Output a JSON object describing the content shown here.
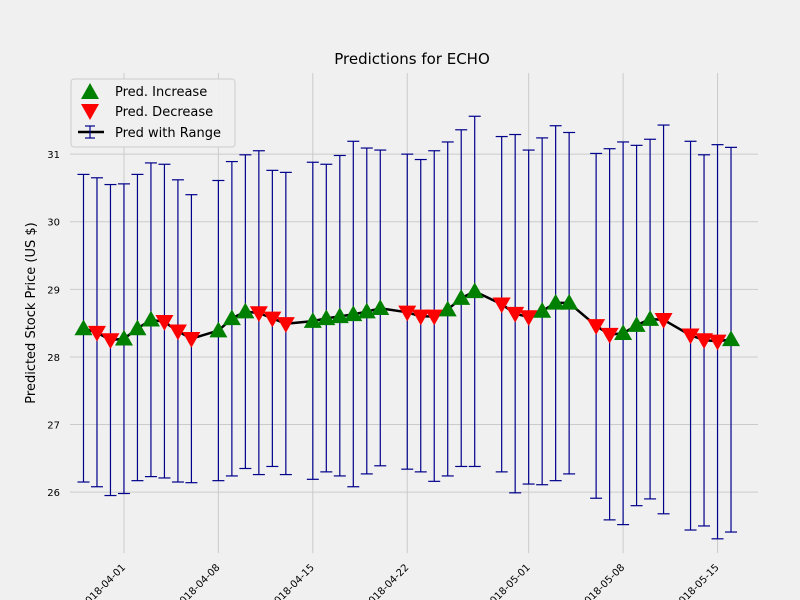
{
  "chart_data": {
    "type": "line",
    "title": "Predictions for ECHO",
    "xlabel": "",
    "ylabel": "Predicted Stock Price (US $)",
    "x_start": "2018-03-28",
    "x_end": "2018-05-18",
    "ylim": [
      25.1,
      32.2
    ],
    "y_ticks": [
      26,
      27,
      28,
      29,
      30,
      31
    ],
    "x_ticks": [
      "2018-04-01",
      "2018-04-08",
      "2018-04-15",
      "2018-04-22",
      "2018-05-01",
      "2018-05-08",
      "2018-05-15"
    ],
    "x_tick_labels": [
      "2018-04-01",
      "2018-04-08",
      "2018-04-15",
      "2018-04-22",
      "2018-05-01",
      "2018-05-08",
      "2018-05-15"
    ],
    "grid": true,
    "legend_position": "top-left",
    "legend": {
      "increase": "Pred. Increase",
      "decrease": "Pred. Decrease",
      "range": "Pred with Range"
    },
    "colors": {
      "increase": "#008000",
      "decrease": "#ff0000",
      "line": "#000000",
      "errorbar": "#00008b",
      "grid": "#cbcbcb",
      "background": "#f0f0f0"
    },
    "points": [
      {
        "date": "2018-03-29",
        "y": 28.42,
        "low": 26.15,
        "high": 30.7,
        "dir": "up"
      },
      {
        "date": "2018-03-30",
        "y": 28.36,
        "low": 26.08,
        "high": 30.65,
        "dir": "down"
      },
      {
        "date": "2018-03-31",
        "y": 28.25,
        "low": 25.95,
        "high": 30.55,
        "dir": "down"
      },
      {
        "date": "2018-04-01",
        "y": 28.27,
        "low": 25.98,
        "high": 30.56,
        "dir": "up"
      },
      {
        "date": "2018-04-02",
        "y": 28.42,
        "low": 26.17,
        "high": 30.7,
        "dir": "up"
      },
      {
        "date": "2018-04-03",
        "y": 28.55,
        "low": 26.23,
        "high": 30.87,
        "dir": "up"
      },
      {
        "date": "2018-04-04",
        "y": 28.52,
        "low": 26.21,
        "high": 30.85,
        "dir": "down"
      },
      {
        "date": "2018-04-05",
        "y": 28.38,
        "low": 26.15,
        "high": 30.62,
        "dir": "down"
      },
      {
        "date": "2018-04-06",
        "y": 28.27,
        "low": 26.14,
        "high": 30.4,
        "dir": "down"
      },
      {
        "date": "2018-04-08",
        "y": 28.39,
        "low": 26.17,
        "high": 30.61,
        "dir": "up"
      },
      {
        "date": "2018-04-09",
        "y": 28.57,
        "low": 26.24,
        "high": 30.89,
        "dir": "up"
      },
      {
        "date": "2018-04-10",
        "y": 28.67,
        "low": 26.35,
        "high": 30.99,
        "dir": "up"
      },
      {
        "date": "2018-04-11",
        "y": 28.65,
        "low": 26.26,
        "high": 31.05,
        "dir": "down"
      },
      {
        "date": "2018-04-12",
        "y": 28.57,
        "low": 26.38,
        "high": 30.76,
        "dir": "down"
      },
      {
        "date": "2018-04-13",
        "y": 28.49,
        "low": 26.26,
        "high": 30.73,
        "dir": "down"
      },
      {
        "date": "2018-04-15",
        "y": 28.53,
        "low": 26.19,
        "high": 30.88,
        "dir": "up"
      },
      {
        "date": "2018-04-16",
        "y": 28.57,
        "low": 26.3,
        "high": 30.85,
        "dir": "up"
      },
      {
        "date": "2018-04-17",
        "y": 28.6,
        "low": 26.24,
        "high": 30.98,
        "dir": "up"
      },
      {
        "date": "2018-04-18",
        "y": 28.63,
        "low": 26.08,
        "high": 31.19,
        "dir": "up"
      },
      {
        "date": "2018-04-19",
        "y": 28.67,
        "low": 26.27,
        "high": 31.09,
        "dir": "up"
      },
      {
        "date": "2018-04-20",
        "y": 28.72,
        "low": 26.39,
        "high": 31.06,
        "dir": "up"
      },
      {
        "date": "2018-04-22",
        "y": 28.66,
        "low": 26.34,
        "high": 31.0,
        "dir": "down"
      },
      {
        "date": "2018-04-23",
        "y": 28.6,
        "low": 26.3,
        "high": 30.92,
        "dir": "down"
      },
      {
        "date": "2018-04-24",
        "y": 28.6,
        "low": 26.16,
        "high": 31.05,
        "dir": "down"
      },
      {
        "date": "2018-04-25",
        "y": 28.7,
        "low": 26.24,
        "high": 31.18,
        "dir": "up"
      },
      {
        "date": "2018-04-26",
        "y": 28.87,
        "low": 26.38,
        "high": 31.36,
        "dir": "up"
      },
      {
        "date": "2018-04-27",
        "y": 28.97,
        "low": 26.38,
        "high": 31.56,
        "dir": "up"
      },
      {
        "date": "2018-04-29",
        "y": 28.78,
        "low": 26.3,
        "high": 31.26,
        "dir": "down"
      },
      {
        "date": "2018-04-30",
        "y": 28.64,
        "low": 25.99,
        "high": 31.29,
        "dir": "down"
      },
      {
        "date": "2018-05-01",
        "y": 28.59,
        "low": 26.12,
        "high": 31.06,
        "dir": "down"
      },
      {
        "date": "2018-05-02",
        "y": 28.68,
        "low": 26.11,
        "high": 31.24,
        "dir": "up"
      },
      {
        "date": "2018-05-03",
        "y": 28.8,
        "low": 26.17,
        "high": 31.42,
        "dir": "up"
      },
      {
        "date": "2018-05-04",
        "y": 28.8,
        "low": 26.27,
        "high": 31.32,
        "dir": "up"
      },
      {
        "date": "2018-05-06",
        "y": 28.46,
        "low": 25.91,
        "high": 31.01,
        "dir": "down"
      },
      {
        "date": "2018-05-07",
        "y": 28.33,
        "low": 25.59,
        "high": 31.08,
        "dir": "down"
      },
      {
        "date": "2018-05-08",
        "y": 28.35,
        "low": 25.52,
        "high": 31.18,
        "dir": "up"
      },
      {
        "date": "2018-05-09",
        "y": 28.47,
        "low": 25.8,
        "high": 31.13,
        "dir": "up"
      },
      {
        "date": "2018-05-10",
        "y": 28.56,
        "low": 25.9,
        "high": 31.22,
        "dir": "up"
      },
      {
        "date": "2018-05-11",
        "y": 28.55,
        "low": 25.68,
        "high": 31.43,
        "dir": "down"
      },
      {
        "date": "2018-05-13",
        "y": 28.32,
        "low": 25.44,
        "high": 31.19,
        "dir": "down"
      },
      {
        "date": "2018-05-14",
        "y": 28.25,
        "low": 25.5,
        "high": 30.99,
        "dir": "down"
      },
      {
        "date": "2018-05-15",
        "y": 28.23,
        "low": 25.31,
        "high": 31.14,
        "dir": "down"
      },
      {
        "date": "2018-05-16",
        "y": 28.26,
        "low": 25.41,
        "high": 31.1,
        "dir": "up"
      }
    ]
  }
}
